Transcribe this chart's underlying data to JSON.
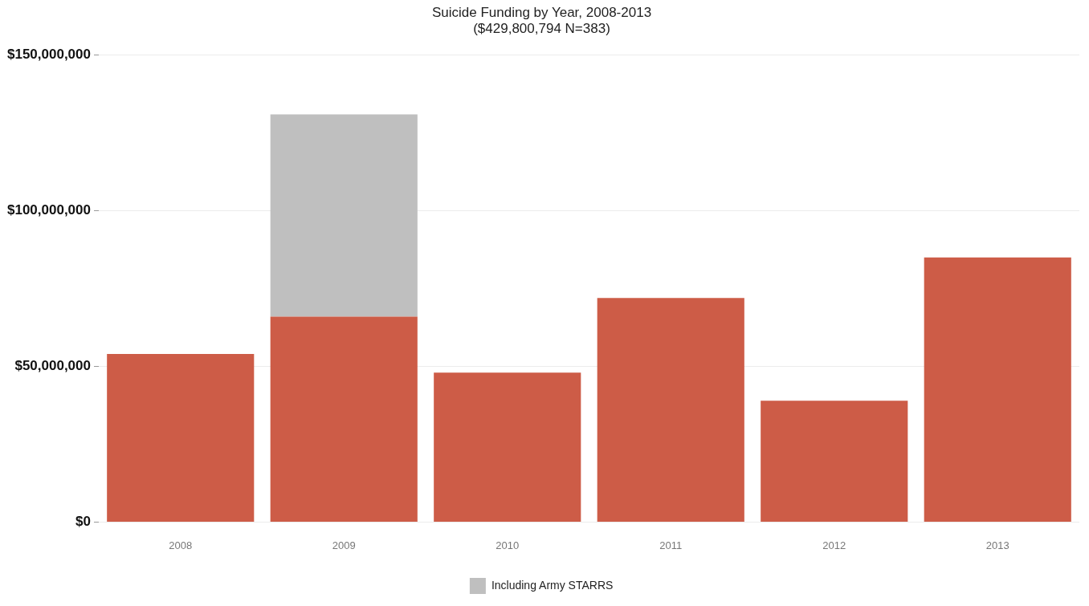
{
  "chart_data": {
    "type": "bar",
    "title": "Suicide Funding by Year, 2008-2013",
    "subtitle": "($429,800,794 N=383)",
    "categories": [
      "2008",
      "2009",
      "2010",
      "2011",
      "2012",
      "2013"
    ],
    "series": [
      {
        "color": "#cd5c47",
        "values": [
          54000000,
          66000000,
          48000000,
          72000000,
          39000000,
          85000000
        ]
      },
      {
        "name": "Including Army STARRS",
        "color": "#bfbfbf",
        "values": [
          null,
          65000000,
          null,
          null,
          null,
          null
        ]
      }
    ],
    "stacked": true,
    "ylim": [
      0,
      150000000
    ],
    "yticks": [
      {
        "value": 0,
        "label": "$0"
      },
      {
        "value": 50000000,
        "label": "$50,000,000"
      },
      {
        "value": 100000000,
        "label": "$100,000,000"
      },
      {
        "value": 150000000,
        "label": "$150,000,000"
      }
    ],
    "grid": "y",
    "legend": "bottom"
  }
}
